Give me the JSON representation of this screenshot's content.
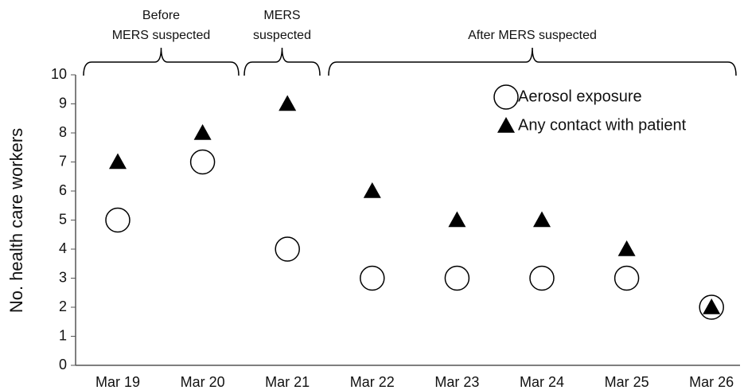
{
  "chart_data": {
    "type": "scatter",
    "ylabel": "No. health care workers",
    "annotations": [
      [
        "Before",
        "MERS suspected"
      ],
      [
        "MERS",
        "suspected"
      ],
      [
        "After MERS suspected"
      ]
    ],
    "categories": [
      "Mar 19",
      "Mar 20",
      "Mar 21",
      "Mar 22",
      "Mar 23",
      "Mar 24",
      "Mar 25",
      "Mar 26"
    ],
    "series": [
      {
        "name": "Aerosol exposure",
        "color": "#000000",
        "marker": "circle",
        "values": [
          5,
          7,
          4,
          3,
          3,
          3,
          3,
          2
        ]
      },
      {
        "name": "Any contact with patient",
        "color": "#000000",
        "marker": "triangle",
        "values": [
          7,
          8,
          9,
          6,
          5,
          5,
          4,
          2
        ]
      }
    ],
    "ylim": [
      0,
      10
    ],
    "yticks": [
      0,
      1,
      2,
      3,
      4,
      5,
      6,
      7,
      8,
      9,
      10
    ],
    "grid": false,
    "legend": "upper right"
  }
}
